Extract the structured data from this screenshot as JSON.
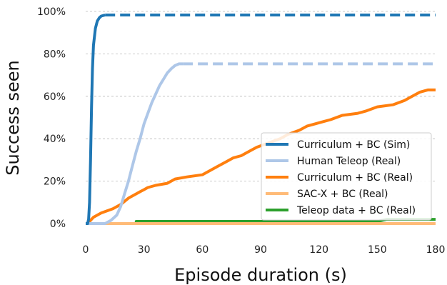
{
  "chart_data": {
    "type": "line",
    "title": "",
    "xlabel": "Episode duration (s)",
    "ylabel": "Success seen",
    "xlim": [
      0,
      180
    ],
    "ylim": [
      0,
      100
    ],
    "x_ticks": [
      0,
      30,
      60,
      90,
      120,
      150,
      180
    ],
    "y_ticks": [
      0,
      20,
      40,
      60,
      80,
      100
    ],
    "y_tick_format": "percent",
    "grid": "horizontal dashed",
    "legend_position": "lower-right",
    "series": [
      {
        "name": "Curriculum + BC (Sim)",
        "color": "#1f77b4",
        "solid_points": [
          [
            0,
            0
          ],
          [
            1,
            0
          ],
          [
            1.5,
            2
          ],
          [
            2,
            10
          ],
          [
            2.5,
            30
          ],
          [
            3,
            55
          ],
          [
            3.5,
            73
          ],
          [
            4,
            84
          ],
          [
            5,
            92
          ],
          [
            6,
            95.5
          ],
          [
            7,
            97
          ],
          [
            8,
            97.8
          ],
          [
            10,
            98.3
          ]
        ],
        "dashed_points": [
          [
            10,
            98.3
          ],
          [
            180,
            98.3
          ]
        ]
      },
      {
        "name": "Human Teleop (Real)",
        "color": "#aec7e8",
        "solid_points": [
          [
            0,
            0
          ],
          [
            10,
            0
          ],
          [
            13,
            1.5
          ],
          [
            16,
            4
          ],
          [
            18,
            8
          ],
          [
            20,
            14
          ],
          [
            22,
            20
          ],
          [
            24,
            27
          ],
          [
            26,
            34
          ],
          [
            28,
            40
          ],
          [
            30,
            47
          ],
          [
            32,
            52
          ],
          [
            34,
            57
          ],
          [
            36,
            61
          ],
          [
            38,
            65
          ],
          [
            40,
            68
          ],
          [
            42,
            71
          ],
          [
            44,
            73
          ],
          [
            46,
            74.5
          ],
          [
            48,
            75.3
          ],
          [
            50,
            75.3
          ]
        ],
        "dashed_points": [
          [
            50,
            75.3
          ],
          [
            180,
            75.3
          ]
        ]
      },
      {
        "name": "Curriculum + BC (Real)",
        "color": "#ff7f0e",
        "solid_points": [
          [
            0,
            0
          ],
          [
            1,
            0
          ],
          [
            2,
            1
          ],
          [
            4,
            3
          ],
          [
            8,
            5
          ],
          [
            14,
            7
          ],
          [
            18,
            9
          ],
          [
            22,
            12
          ],
          [
            26,
            14
          ],
          [
            28,
            15
          ],
          [
            30,
            16
          ],
          [
            32,
            17
          ],
          [
            36,
            18
          ],
          [
            42,
            19
          ],
          [
            46,
            21
          ],
          [
            52,
            22
          ],
          [
            60,
            23
          ],
          [
            64,
            25
          ],
          [
            68,
            27
          ],
          [
            72,
            29
          ],
          [
            76,
            31
          ],
          [
            80,
            32
          ],
          [
            84,
            34
          ],
          [
            88,
            36
          ],
          [
            94,
            38
          ],
          [
            100,
            40
          ],
          [
            104,
            42
          ],
          [
            110,
            44
          ],
          [
            114,
            46
          ],
          [
            118,
            47
          ],
          [
            122,
            48
          ],
          [
            126,
            49
          ],
          [
            132,
            51
          ],
          [
            140,
            52
          ],
          [
            144,
            53
          ],
          [
            150,
            55
          ],
          [
            158,
            56
          ],
          [
            164,
            58
          ],
          [
            168,
            60
          ],
          [
            172,
            62
          ],
          [
            176,
            63
          ],
          [
            180,
            63
          ]
        ]
      },
      {
        "name": "SAC-X + BC (Real)",
        "color": "#ffbb78",
        "solid_points": [
          [
            0,
            0
          ],
          [
            180,
            0
          ]
        ]
      },
      {
        "name": "Teleop data + BC (Real)",
        "color": "#2ca02c",
        "solid_points": [
          [
            0,
            0
          ],
          [
            26,
            0
          ],
          [
            26,
            1
          ],
          [
            80,
            1
          ],
          [
            150,
            1
          ],
          [
            155,
            2
          ],
          [
            180,
            2
          ]
        ]
      }
    ]
  }
}
